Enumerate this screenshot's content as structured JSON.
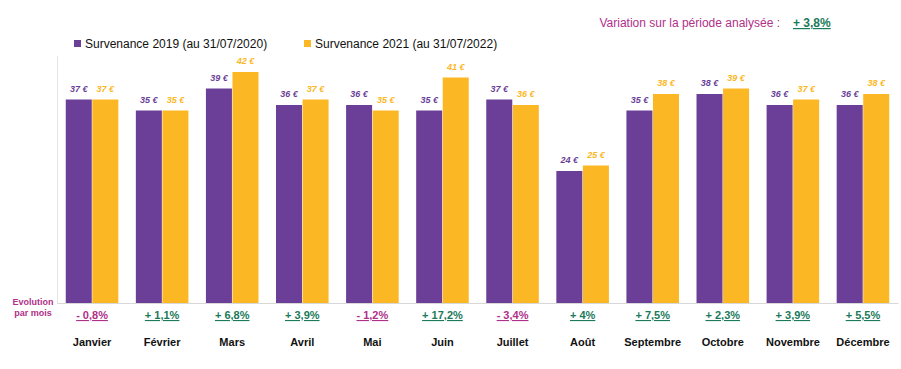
{
  "chart_data": {
    "type": "bar",
    "categories": [
      "Janvier",
      "Février",
      "Mars",
      "Avril",
      "Mai",
      "Juin",
      "Juillet",
      "Août",
      "Septembre",
      "Octobre",
      "Novembre",
      "Décembre"
    ],
    "series": [
      {
        "name": "Survenance 2019 (au 31/07/2020)",
        "color": "#6b3f98",
        "values": [
          37,
          35,
          39,
          36,
          36,
          35,
          37,
          24,
          35,
          38,
          36,
          36
        ],
        "value_labels": [
          "37 €",
          "35 €",
          "39 €",
          "36 €",
          "36 €",
          "35 €",
          "37 €",
          "24 €",
          "35 €",
          "38 €",
          "36 €",
          "36 €"
        ]
      },
      {
        "name": "Survenance 2021 (au 31/07/2022)",
        "color": "#fbb724",
        "values": [
          37,
          35,
          42,
          37,
          35,
          41,
          36,
          25,
          38,
          39,
          37,
          38
        ],
        "value_labels": [
          "37 €",
          "35 €",
          "42 €",
          "37 €",
          "35 €",
          "41 €",
          "36 €",
          "25 €",
          "38 €",
          "39 €",
          "37 €",
          "38 €"
        ]
      }
    ],
    "ylim": [
      0,
      45
    ],
    "data_labels": true,
    "tick_labels": "x",
    "legend": "top-left",
    "variation": {
      "label": "Variation sur la période analysée :",
      "value": 3.8,
      "value_label": "+ 3,8%"
    },
    "evolution": {
      "title_lines": [
        "Evolution",
        "par mois"
      ],
      "values": [
        -0.8,
        1.1,
        6.8,
        3.9,
        -1.2,
        17.2,
        -3.4,
        4,
        7.5,
        2.3,
        3.9,
        5.5
      ],
      "value_labels": [
        "- 0,8%",
        "+ 1,1%",
        "+ 6,8%",
        "+ 3,9%",
        "- 1,2%",
        "+ 17,2%",
        "- 3,4%",
        "+ 4%",
        "+ 7,5%",
        "+ 2,3%",
        "+ 3,9%",
        "+ 5,5%"
      ]
    }
  }
}
